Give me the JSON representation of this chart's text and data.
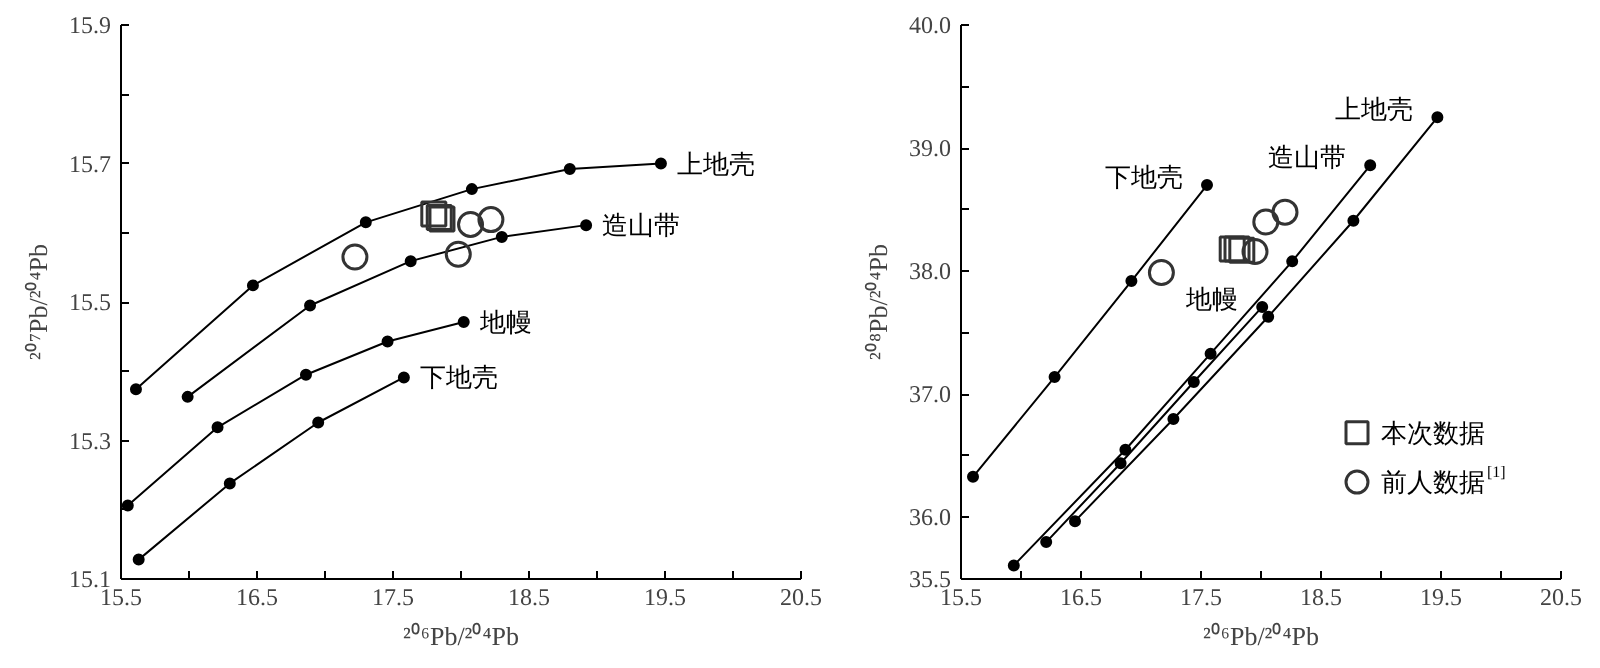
{
  "chart_data": [
    {
      "type": "line",
      "xlabel": "²⁰⁶Pb/²⁰⁴Pb",
      "ylabel": "²⁰⁷Pb/²⁰⁴Pb",
      "xlim": [
        15.5,
        20.5
      ],
      "ylim": [
        15.1,
        15.9
      ],
      "xticks": [
        15.5,
        {
          "value": 16.0,
          "label": null
        },
        16.5,
        {
          "value": 17.0,
          "label": null
        },
        17.5,
        {
          "value": 18.0,
          "label": null
        },
        18.5,
        {
          "value": 19.0,
          "label": null
        },
        19.5,
        {
          "value": 20.0,
          "label": null
        },
        20.5
      ],
      "yticks": [
        15.1,
        {
          "value": 15.2,
          "label": null
        },
        15.3,
        {
          "value": 15.4,
          "label": null
        },
        15.5,
        {
          "value": 15.6,
          "label": null
        },
        15.7,
        {
          "value": 15.8,
          "label": null
        },
        15.9
      ],
      "grid": false,
      "legend": false,
      "marker": "circle",
      "line_style": "solid",
      "series": [
        {
          "name": "上地壳",
          "color": "#000000",
          "x": [
            15.61,
            16.47,
            17.3,
            18.08,
            18.8,
            19.47
          ],
          "values": [
            15.374,
            15.524,
            15.615,
            15.663,
            15.692,
            15.7
          ]
        },
        {
          "name": "造山带",
          "color": "#000000",
          "x": [
            15.99,
            16.89,
            17.63,
            18.3,
            18.92
          ],
          "values": [
            15.363,
            15.495,
            15.559,
            15.594,
            15.611
          ]
        },
        {
          "name": "地幔",
          "color": "#000000",
          "x": [
            15.55,
            16.21,
            16.86,
            17.46,
            18.02
          ],
          "values": [
            15.206,
            15.319,
            15.395,
            15.443,
            15.471
          ]
        },
        {
          "name": "下地壳",
          "color": "#000000",
          "x": [
            15.63,
            16.3,
            16.95,
            17.58
          ],
          "values": [
            15.128,
            15.238,
            15.326,
            15.391
          ]
        },
        {
          "type": "scatter",
          "marker": "square",
          "color": "#333333",
          "x": [
            17.8,
            17.84,
            17.86
          ],
          "values": [
            15.627,
            15.622,
            15.62
          ]
        },
        {
          "type": "scatter",
          "marker": "circle",
          "color": "#333333",
          "x": [
            17.22,
            18.07,
            18.22,
            17.98
          ],
          "values": [
            15.565,
            15.612,
            15.619,
            15.569
          ]
        }
      ]
    },
    {
      "type": "line",
      "xlabel": "²⁰⁶Pb/²⁰⁴Pb",
      "ylabel": "²⁰⁸Pb/²⁰⁴Pb",
      "xlim": [
        15.5,
        20.5
      ],
      "ylim": [
        35.5,
        40.0
      ],
      "xticks": [
        15.5,
        {
          "value": 16.0,
          "label": null
        },
        16.5,
        {
          "value": 17.0,
          "label": null
        },
        17.5,
        {
          "value": 18.0,
          "label": null
        },
        18.5,
        {
          "value": 19.0,
          "label": null
        },
        19.5,
        {
          "value": 20.0,
          "label": null
        },
        20.5
      ],
      "yticks": [
        35.5,
        {
          "value": 36.0,
          "label": "36.0"
        },
        {
          "value": 36.5,
          "label": null
        },
        {
          "value": 37.0,
          "label": "37.0"
        },
        {
          "value": 37.5,
          "label": null
        },
        {
          "value": 38.0,
          "label": "38.0"
        },
        {
          "value": 38.5,
          "label": null
        },
        {
          "value": 39.0,
          "label": "39.0"
        },
        {
          "value": 39.5,
          "label": null
        },
        {
          "value": 40.0,
          "label": "40.0"
        }
      ],
      "grid": false,
      "legend": "bottom right",
      "marker": "circle",
      "line_style": "solid",
      "series": [
        {
          "name": "下地壳",
          "color": "#000000",
          "x": [
            15.6,
            16.28,
            16.92,
            17.55
          ],
          "values": [
            36.33,
            37.14,
            37.92,
            38.7
          ]
        },
        {
          "name": "造山带",
          "color": "#000000",
          "x": [
            15.94,
            16.87,
            17.58,
            18.26,
            18.91
          ],
          "values": [
            35.61,
            36.55,
            37.33,
            38.08,
            38.86
          ]
        },
        {
          "name": "地幔",
          "color": "#000000",
          "x": [
            16.21,
            16.83,
            17.44,
            18.01
          ],
          "values": [
            35.8,
            36.44,
            37.1,
            37.71
          ]
        },
        {
          "name": "上地壳",
          "color": "#000000",
          "x": [
            16.45,
            17.27,
            18.06,
            18.77,
            19.47
          ],
          "values": [
            35.97,
            36.8,
            37.63,
            38.41,
            39.25
          ]
        },
        {
          "type": "scatter",
          "name": "本次数据",
          "marker": "square",
          "color": "#333333",
          "x": [
            17.76,
            17.8,
            17.84
          ],
          "values": [
            38.18,
            38.18,
            38.17
          ]
        },
        {
          "type": "scatter",
          "name": "前人数据$^{[1]}$",
          "marker": "circle",
          "color": "#333333",
          "x": [
            17.17,
            17.95,
            18.04,
            18.2
          ],
          "values": [
            37.99,
            38.16,
            38.4,
            38.48
          ]
        }
      ]
    }
  ]
}
